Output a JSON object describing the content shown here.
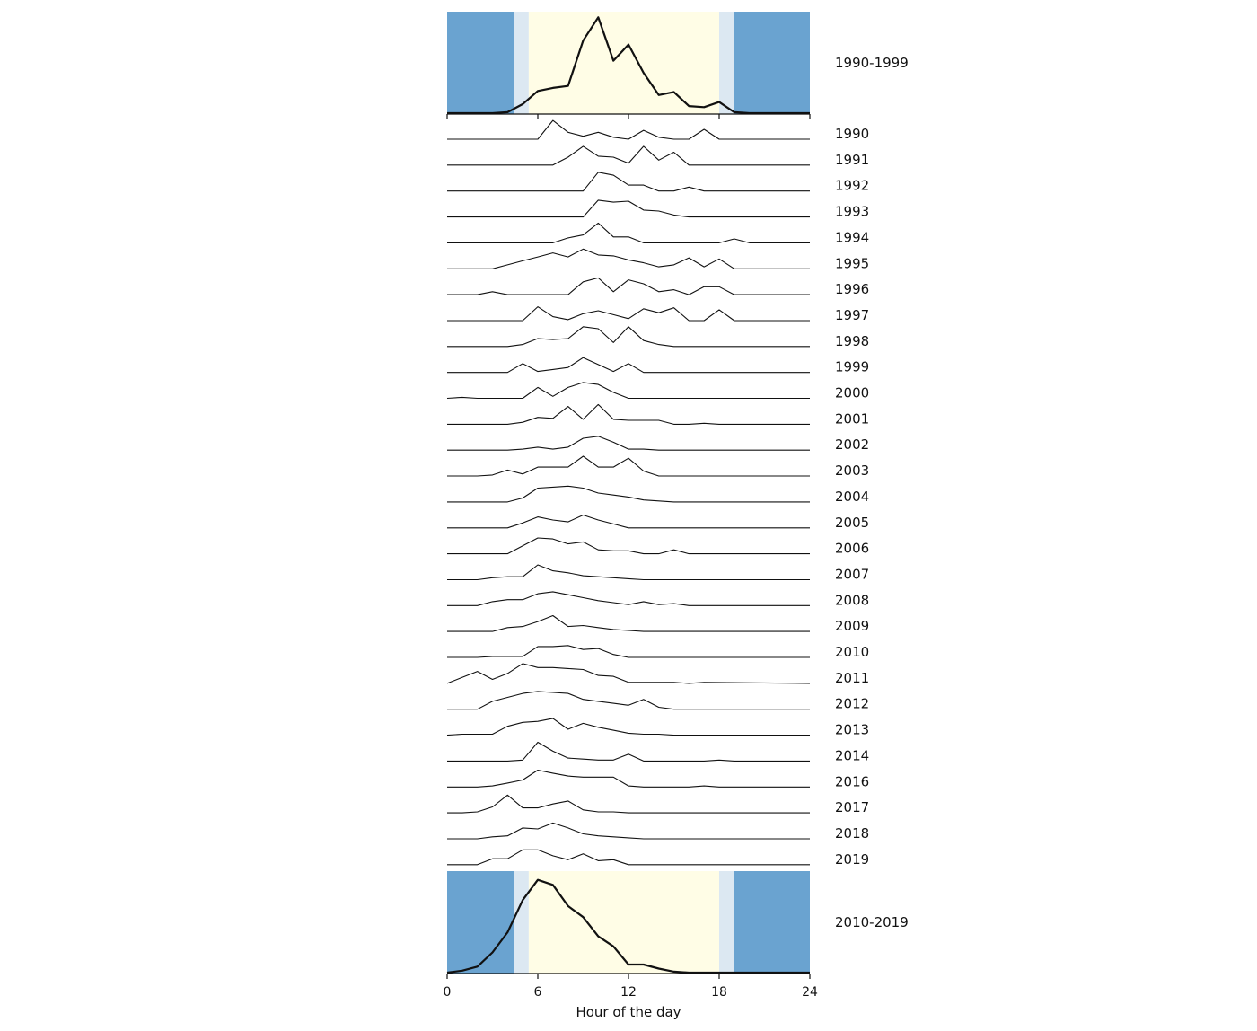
{
  "chart_data": {
    "type": "line",
    "xlabel": "Hour of the day",
    "x_ticks": [
      0,
      6,
      12,
      18,
      24
    ],
    "xlim": [
      0,
      24
    ],
    "background_bands": {
      "night_color": "#6aa3d0",
      "twilight_color": "#dce8f2",
      "day_color": "#fffde6",
      "bands": [
        {
          "from": 0,
          "to": 4.4,
          "kind": "night"
        },
        {
          "from": 4.4,
          "to": 5.4,
          "kind": "twilight"
        },
        {
          "from": 5.4,
          "to": 18.0,
          "kind": "day"
        },
        {
          "from": 18.0,
          "to": 19.0,
          "kind": "twilight"
        },
        {
          "from": 19.0,
          "to": 24,
          "kind": "night"
        }
      ]
    },
    "summary_series": [
      {
        "name": "1990-1999",
        "x": [
          0,
          1,
          2,
          3,
          4,
          5,
          6,
          7,
          8,
          9,
          10,
          11,
          12,
          13,
          14,
          15,
          16,
          17,
          18,
          19,
          20,
          21,
          22,
          23,
          24
        ],
        "y": [
          0,
          0,
          0,
          0,
          0.01,
          0.09,
          0.22,
          0.25,
          0.27,
          0.72,
          0.95,
          0.52,
          0.68,
          0.4,
          0.18,
          0.21,
          0.07,
          0.06,
          0.11,
          0.01,
          0,
          0,
          0,
          0,
          0
        ]
      },
      {
        "name": "2010-2019",
        "x": [
          0,
          1,
          2,
          3,
          4,
          5,
          6,
          7,
          8,
          9,
          10,
          11,
          12,
          13,
          14,
          15,
          16,
          17,
          18,
          19,
          20,
          21,
          22,
          23,
          24
        ],
        "y": [
          0,
          0.02,
          0.06,
          0.2,
          0.4,
          0.72,
          0.92,
          0.87,
          0.66,
          0.55,
          0.36,
          0.26,
          0.08,
          0.08,
          0.04,
          0.01,
          0,
          0,
          0,
          0,
          0,
          0,
          0,
          0,
          0
        ]
      }
    ],
    "series": [
      {
        "name": "1990",
        "x": [
          0,
          6,
          7,
          8,
          9,
          10,
          11,
          12,
          13,
          14,
          15,
          16,
          17,
          18,
          24
        ],
        "y": [
          0,
          0,
          0.95,
          0.35,
          0.15,
          0.35,
          0.1,
          0,
          0.45,
          0.1,
          0,
          0,
          0.5,
          0,
          0
        ]
      },
      {
        "name": "1991",
        "x": [
          0,
          7,
          8,
          9,
          10,
          11,
          12,
          13,
          14,
          15,
          16,
          24
        ],
        "y": [
          0,
          0,
          0.4,
          0.95,
          0.45,
          0.4,
          0.1,
          0.95,
          0.25,
          0.65,
          0,
          0
        ]
      },
      {
        "name": "1992",
        "x": [
          0,
          9,
          10,
          11,
          12,
          13,
          14,
          15,
          16,
          17,
          24
        ],
        "y": [
          0,
          0,
          0.95,
          0.8,
          0.3,
          0.3,
          0,
          0,
          0.2,
          0,
          0
        ]
      },
      {
        "name": "1993",
        "x": [
          0,
          9,
          10,
          11,
          12,
          13,
          14,
          15,
          16,
          24
        ],
        "y": [
          0,
          0,
          0.85,
          0.75,
          0.8,
          0.35,
          0.3,
          0.1,
          0,
          0
        ]
      },
      {
        "name": "1994",
        "x": [
          0,
          7,
          8,
          9,
          10,
          11,
          12,
          13,
          14,
          15,
          16,
          17,
          18,
          19,
          20,
          24
        ],
        "y": [
          0,
          0,
          0.25,
          0.4,
          1.0,
          0.3,
          0.3,
          0,
          0,
          0,
          0,
          0,
          0,
          0.2,
          0,
          0
        ]
      },
      {
        "name": "1995",
        "x": [
          0,
          3,
          4,
          5,
          6,
          7,
          8,
          9,
          10,
          11,
          12,
          13,
          14,
          15,
          16,
          17,
          18,
          19,
          24
        ],
        "y": [
          0,
          0,
          0.2,
          0.4,
          0.6,
          0.8,
          0.6,
          1.0,
          0.7,
          0.65,
          0.45,
          0.3,
          0.1,
          0.2,
          0.55,
          0.1,
          0.5,
          0,
          0
        ]
      },
      {
        "name": "1996",
        "x": [
          0,
          2,
          3,
          4,
          8,
          9,
          10,
          11,
          12,
          13,
          14,
          15,
          16,
          17,
          18,
          19,
          24
        ],
        "y": [
          0,
          0,
          0.15,
          0,
          0,
          0.65,
          0.85,
          0.15,
          0.75,
          0.55,
          0.15,
          0.25,
          0,
          0.4,
          0.4,
          0,
          0
        ]
      },
      {
        "name": "1997",
        "x": [
          0,
          5,
          6,
          7,
          8,
          9,
          10,
          11,
          12,
          13,
          14,
          15,
          16,
          17,
          18,
          19,
          24
        ],
        "y": [
          0,
          0,
          0.7,
          0.2,
          0.05,
          0.35,
          0.5,
          0.3,
          0.1,
          0.6,
          0.4,
          0.65,
          0,
          0,
          0.55,
          0,
          0
        ]
      },
      {
        "name": "1998",
        "x": [
          0,
          4,
          5,
          6,
          7,
          8,
          9,
          10,
          11,
          12,
          13,
          14,
          15,
          24
        ],
        "y": [
          0,
          0,
          0.1,
          0.4,
          0.35,
          0.4,
          1.0,
          0.9,
          0.2,
          1.0,
          0.3,
          0.1,
          0,
          0
        ]
      },
      {
        "name": "1999",
        "x": [
          0,
          4,
          5,
          6,
          7,
          8,
          9,
          10,
          11,
          12,
          13,
          24
        ],
        "y": [
          0,
          0,
          0.45,
          0.05,
          0.15,
          0.25,
          0.75,
          0.4,
          0.05,
          0.45,
          0,
          0
        ]
      },
      {
        "name": "2000",
        "x": [
          0,
          1,
          2,
          3,
          4,
          5,
          6,
          7,
          8,
          9,
          10,
          11,
          12,
          13,
          14,
          15,
          16,
          24
        ],
        "y": [
          0,
          0.05,
          0,
          0,
          0,
          0,
          0.55,
          0.1,
          0.55,
          0.8,
          0.7,
          0.3,
          0,
          0,
          0,
          0,
          0,
          0
        ]
      },
      {
        "name": "2001",
        "x": [
          0,
          1,
          2,
          3,
          4,
          5,
          6,
          7,
          8,
          9,
          10,
          11,
          12,
          13,
          14,
          15,
          16,
          17,
          18,
          24
        ],
        "y": [
          0,
          0,
          0,
          0,
          0,
          0.1,
          0.35,
          0.3,
          0.9,
          0.25,
          1.0,
          0.25,
          0.2,
          0.2,
          0.2,
          0,
          0,
          0.05,
          0,
          0
        ]
      },
      {
        "name": "2002",
        "x": [
          0,
          1,
          2,
          3,
          4,
          5,
          6,
          7,
          8,
          9,
          10,
          11,
          12,
          13,
          14,
          24
        ],
        "y": [
          0,
          0,
          0,
          0,
          0,
          0.05,
          0.15,
          0.05,
          0.15,
          0.6,
          0.7,
          0.4,
          0.05,
          0.05,
          0,
          0
        ]
      },
      {
        "name": "2003",
        "x": [
          0,
          1,
          2,
          3,
          4,
          5,
          6,
          7,
          8,
          9,
          10,
          11,
          12,
          13,
          14,
          24
        ],
        "y": [
          0,
          0,
          0,
          0.05,
          0.3,
          0.1,
          0.45,
          0.45,
          0.45,
          1.0,
          0.45,
          0.45,
          0.9,
          0.25,
          0,
          0
        ]
      },
      {
        "name": "2004",
        "x": [
          0,
          1,
          2,
          3,
          4,
          5,
          6,
          7,
          8,
          9,
          10,
          11,
          12,
          13,
          14,
          15,
          24
        ],
        "y": [
          0,
          0,
          0,
          0,
          0,
          0.2,
          0.7,
          0.75,
          0.8,
          0.7,
          0.45,
          0.35,
          0.25,
          0.1,
          0.05,
          0,
          0
        ]
      },
      {
        "name": "2005",
        "x": [
          0,
          1,
          2,
          3,
          4,
          5,
          6,
          7,
          8,
          9,
          10,
          11,
          12,
          13,
          14,
          24
        ],
        "y": [
          0,
          0,
          0,
          0,
          0,
          0.25,
          0.55,
          0.4,
          0.3,
          0.65,
          0.4,
          0.2,
          0,
          0,
          0,
          0
        ]
      },
      {
        "name": "2006",
        "x": [
          0,
          1,
          2,
          3,
          4,
          5,
          6,
          7,
          8,
          9,
          10,
          11,
          12,
          13,
          14,
          15,
          16,
          17,
          24
        ],
        "y": [
          0,
          0,
          0,
          0,
          0,
          0.4,
          0.8,
          0.75,
          0.5,
          0.6,
          0.2,
          0.15,
          0.15,
          0,
          0,
          0.2,
          0,
          0,
          0
        ]
      },
      {
        "name": "2007",
        "x": [
          0,
          1,
          2,
          3,
          4,
          5,
          6,
          7,
          8,
          9,
          10,
          11,
          12,
          13,
          14,
          15,
          24
        ],
        "y": [
          0,
          0,
          0,
          0.1,
          0.15,
          0.15,
          0.75,
          0.45,
          0.35,
          0.2,
          0.15,
          0.1,
          0.05,
          0,
          0,
          0,
          0
        ]
      },
      {
        "name": "2008",
        "x": [
          0,
          1,
          2,
          3,
          4,
          5,
          6,
          7,
          8,
          9,
          10,
          11,
          12,
          13,
          14,
          15,
          16,
          24
        ],
        "y": [
          0,
          0,
          0,
          0.2,
          0.3,
          0.3,
          0.6,
          0.7,
          0.55,
          0.4,
          0.25,
          0.15,
          0.05,
          0.2,
          0.05,
          0.1,
          0,
          0
        ]
      },
      {
        "name": "2009",
        "x": [
          0,
          1,
          2,
          3,
          4,
          5,
          6,
          7,
          8,
          9,
          10,
          11,
          12,
          13,
          14,
          15,
          24
        ],
        "y": [
          0,
          0,
          0,
          0,
          0.2,
          0.25,
          0.5,
          0.8,
          0.25,
          0.3,
          0.2,
          0.1,
          0.05,
          0,
          0,
          0,
          0
        ]
      },
      {
        "name": "2010",
        "x": [
          0,
          1,
          2,
          3,
          4,
          5,
          6,
          7,
          8,
          9,
          10,
          11,
          12,
          13,
          14,
          15,
          24
        ],
        "y": [
          0,
          0,
          0,
          0.05,
          0.05,
          0.05,
          0.55,
          0.55,
          0.6,
          0.4,
          0.45,
          0.15,
          0,
          0,
          0,
          0,
          0
        ]
      },
      {
        "name": "2011",
        "x": [
          0,
          1,
          2,
          3,
          4,
          5,
          6,
          7,
          8,
          9,
          10,
          11,
          12,
          13,
          14,
          15,
          16,
          17,
          24
        ],
        "y": [
          0,
          0.3,
          0.6,
          0.2,
          0.5,
          1.0,
          0.8,
          0.8,
          0.75,
          0.7,
          0.4,
          0.35,
          0.05,
          0.05,
          0.05,
          0.05,
          0,
          0.05,
          0
        ]
      },
      {
        "name": "2012",
        "x": [
          0,
          1,
          2,
          3,
          4,
          5,
          6,
          7,
          8,
          9,
          10,
          11,
          12,
          13,
          14,
          15,
          24
        ],
        "y": [
          0,
          0,
          0,
          0.4,
          0.6,
          0.8,
          0.9,
          0.85,
          0.8,
          0.5,
          0.4,
          0.3,
          0.2,
          0.5,
          0.1,
          0,
          0
        ]
      },
      {
        "name": "2013",
        "x": [
          0,
          1,
          2,
          3,
          4,
          5,
          6,
          7,
          8,
          9,
          10,
          11,
          12,
          13,
          14,
          15,
          24
        ],
        "y": [
          0,
          0.05,
          0.05,
          0.05,
          0.45,
          0.65,
          0.7,
          0.85,
          0.3,
          0.6,
          0.4,
          0.25,
          0.1,
          0.05,
          0.05,
          0,
          0
        ]
      },
      {
        "name": "2014",
        "x": [
          0,
          1,
          2,
          3,
          4,
          5,
          6,
          7,
          8,
          9,
          10,
          11,
          12,
          13,
          14,
          15,
          16,
          17,
          18,
          19,
          24
        ],
        "y": [
          0,
          0,
          0,
          0,
          0,
          0.05,
          0.95,
          0.5,
          0.15,
          0.1,
          0.05,
          0.05,
          0.35,
          0,
          0,
          0,
          0,
          0,
          0.05,
          0,
          0
        ]
      },
      {
        "name": "2016",
        "x": [
          0,
          1,
          2,
          3,
          4,
          5,
          6,
          7,
          8,
          9,
          10,
          11,
          12,
          13,
          14,
          15,
          16,
          17,
          18,
          24
        ],
        "y": [
          0,
          0,
          0,
          0.05,
          0.2,
          0.35,
          0.85,
          0.7,
          0.55,
          0.5,
          0.5,
          0.5,
          0.05,
          0,
          0,
          0,
          0,
          0.05,
          0,
          0
        ]
      },
      {
        "name": "2017",
        "x": [
          0,
          1,
          2,
          3,
          4,
          5,
          6,
          7,
          8,
          9,
          10,
          11,
          12,
          13,
          14,
          15,
          16,
          17,
          18,
          24
        ],
        "y": [
          0,
          0,
          0.05,
          0.3,
          0.9,
          0.25,
          0.25,
          0.45,
          0.6,
          0.15,
          0.05,
          0.05,
          0,
          0,
          0,
          0,
          0,
          0,
          0,
          0
        ]
      },
      {
        "name": "2018",
        "x": [
          0,
          1,
          2,
          3,
          4,
          5,
          6,
          7,
          8,
          9,
          10,
          11,
          12,
          13,
          14,
          15,
          24
        ],
        "y": [
          0,
          0,
          0,
          0.1,
          0.15,
          0.55,
          0.5,
          0.8,
          0.55,
          0.25,
          0.15,
          0.1,
          0.05,
          0,
          0,
          0,
          0
        ]
      },
      {
        "name": "2019",
        "x": [
          0,
          1,
          2,
          3,
          4,
          5,
          6,
          7,
          8,
          9,
          10,
          11,
          12,
          13,
          14,
          24
        ],
        "y": [
          0,
          0,
          0,
          0.3,
          0.3,
          0.75,
          0.75,
          0.45,
          0.25,
          0.55,
          0.2,
          0.25,
          0,
          0,
          0,
          0
        ]
      }
    ]
  }
}
